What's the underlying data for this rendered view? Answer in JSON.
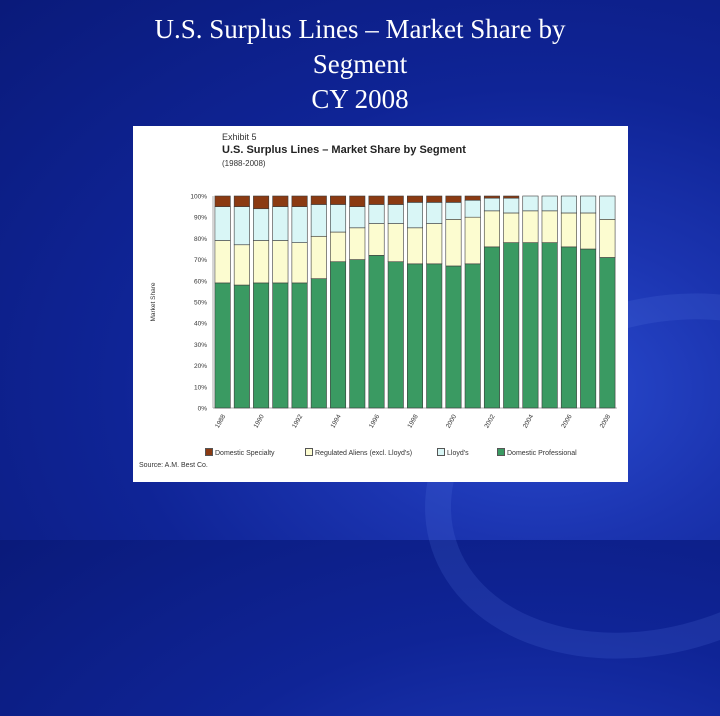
{
  "slide": {
    "title_lines": [
      "U.S. Surplus Lines – Market Share by",
      "Segment",
      "CY 2008"
    ]
  },
  "chart_data": {
    "type": "bar",
    "stacked": true,
    "exhibit_label": "Exhibit 5",
    "title": "U.S. Surplus Lines – Market Share by Segment",
    "subtitle": "(1988-2008)",
    "ylabel": "Market Share",
    "xlabel": "",
    "ylim": [
      0,
      100
    ],
    "yticks": [
      "0%",
      "10%",
      "20%",
      "30%",
      "40%",
      "50%",
      "60%",
      "70%",
      "80%",
      "90%",
      "100%"
    ],
    "categories": [
      "1988",
      "1989",
      "1990",
      "1991",
      "1992",
      "1993",
      "1994",
      "1995",
      "1996",
      "1997",
      "1998",
      "1999",
      "2000",
      "2001",
      "2002",
      "2003",
      "2004",
      "2005",
      "2006",
      "2007",
      "2008"
    ],
    "xtick_labels": [
      "1988",
      "",
      "1990",
      "",
      "1992",
      "",
      "1994",
      "",
      "1996",
      "",
      "1998",
      "",
      "2000",
      "",
      "2002",
      "",
      "2004",
      "",
      "2006",
      "",
      "2008"
    ],
    "series": [
      {
        "name": "Domestic Professional",
        "color": "#3a9a62",
        "values": [
          59,
          58,
          59,
          59,
          59,
          61,
          69,
          70,
          72,
          69,
          68,
          68,
          67,
          68,
          76,
          78,
          78,
          78,
          76,
          75,
          71
        ]
      },
      {
        "name": "Regulated Aliens (excl. Lloyd's)",
        "color": "#fcfcd0",
        "values": [
          20,
          19,
          20,
          20,
          19,
          20,
          14,
          15,
          15,
          18,
          17,
          19,
          22,
          22,
          17,
          14,
          15,
          15,
          16,
          17,
          18
        ]
      },
      {
        "name": "Lloyd's",
        "color": "#d9f6f6",
        "values": [
          16,
          18,
          15,
          16,
          17,
          15,
          13,
          10,
          9,
          9,
          12,
          10,
          8,
          8,
          6,
          7,
          7,
          7,
          8,
          8,
          11
        ]
      },
      {
        "name": "Domestic Specialty",
        "color": "#8b3a12",
        "values": [
          5,
          5,
          6,
          5,
          5,
          4,
          4,
          5,
          4,
          4,
          3,
          3,
          3,
          2,
          1,
          1,
          0,
          0,
          0,
          0,
          0
        ]
      }
    ],
    "legend_order": [
      "Domestic Specialty",
      "Regulated Aliens (excl. Lloyd's)",
      "Lloyd's",
      "Domestic Professional"
    ],
    "legend_placement": "bottom",
    "grid": false,
    "source": "Source: A.M. Best Co."
  }
}
